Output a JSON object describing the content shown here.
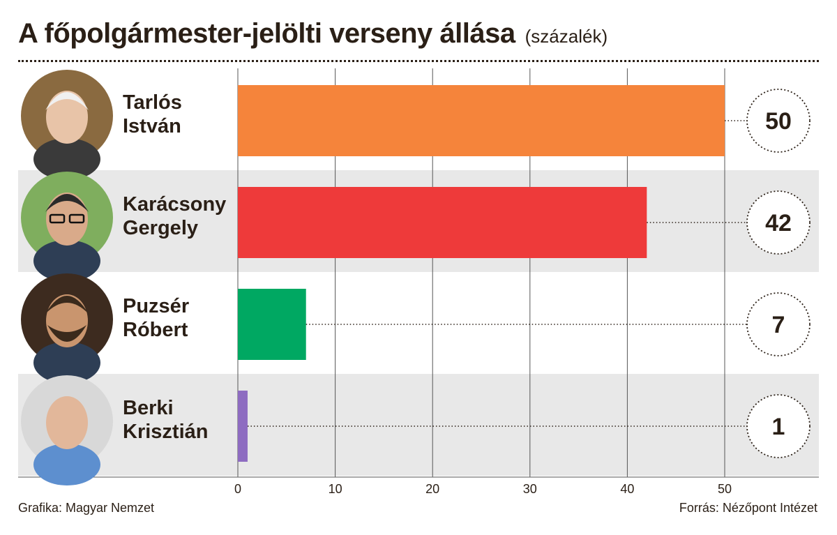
{
  "header": {
    "title": "A főpolgármester-jelölti verseny állása",
    "subtitle": "(százalék)"
  },
  "chart_data": {
    "type": "bar",
    "orientation": "horizontal",
    "categories": [
      [
        "Tarlós",
        "István"
      ],
      [
        "Karácsony",
        "Gergely"
      ],
      [
        "Puzsér",
        "Róbert"
      ],
      [
        "Berki",
        "Krisztián"
      ]
    ],
    "values": [
      50,
      42,
      7,
      1
    ],
    "value_labels": [
      "50",
      "42",
      "7",
      "1"
    ],
    "colors": [
      "#f5843b",
      "#ee3a3a",
      "#00a862",
      "#8e6cc1"
    ],
    "xlim": [
      0,
      60
    ],
    "xticks": [
      0,
      10,
      20,
      30,
      40,
      50
    ],
    "grid": true,
    "row_shading": [
      "#ffffff",
      "#e8e8e8",
      "#ffffff",
      "#e8e8e8"
    ],
    "portraits": [
      "portrait-tarlos",
      "portrait-karacsony",
      "portrait-puzser",
      "portrait-berki"
    ]
  },
  "footer": {
    "credit": "Grafika: Magyar Nemzet",
    "source": "Forrás: Nézőpont Intézet"
  }
}
